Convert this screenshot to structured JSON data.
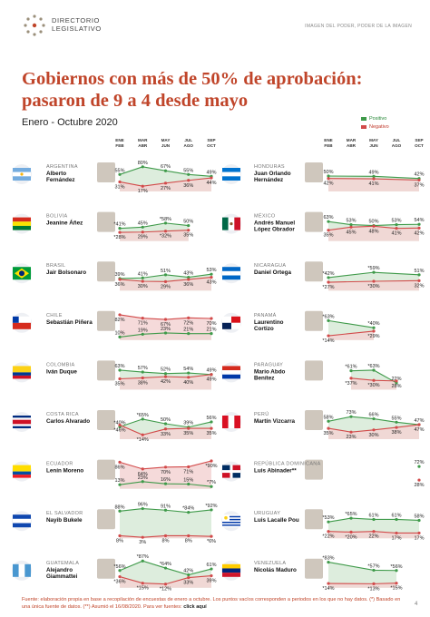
{
  "header": {
    "logo_line1": "DIRECTORIO",
    "logo_line2": "LEGISLATIVO",
    "tagline": "IMAGEN DEL PODER, PODER DE LA IMAGEN"
  },
  "title_line1": "Gobiernos con más de 50% de aprobación:",
  "title_line2": "pasaron de 9 a 4 desde mayo",
  "subtitle": "Enero - Octubre 2020",
  "legend": {
    "positive": "Positivo",
    "negative": "Negativo"
  },
  "colors": {
    "positive": "#3f9a4a",
    "negative": "#d24a4a",
    "pos_fill": "#d7ead7",
    "neg_fill": "#f3d3d3",
    "title": "#c0452a"
  },
  "months": [
    "ENE FEB",
    "MAR ABR",
    "MAY JUN",
    "JUL AGO",
    "SEP OCT"
  ],
  "chart_data": [
    {
      "type": "line",
      "country": "ARGENTINA",
      "leader": "Alberto Fernández",
      "flag": "argentina",
      "positive": [
        55,
        80,
        67,
        55,
        49
      ],
      "negative": [
        31,
        17,
        27,
        36,
        44
      ],
      "pos_labels": [
        "55%",
        "80%",
        "67%",
        "55%",
        "49%"
      ],
      "neg_labels": [
        "31%",
        "17%",
        "27%",
        "36%",
        "44%"
      ]
    },
    {
      "type": "line",
      "country": "BOLIVIA",
      "leader": "Jeanine Áñez",
      "flag": "bolivia",
      "positive": [
        41,
        45,
        58,
        50,
        null
      ],
      "negative": [
        28,
        29,
        32,
        35,
        null
      ],
      "pos_labels": [
        "*41%",
        "45%",
        "*58%",
        "50%",
        ""
      ],
      "neg_labels": [
        "*28%",
        "29%",
        "*32%",
        "35%",
        ""
      ]
    },
    {
      "type": "line",
      "country": "BRASIL",
      "leader": "Jair Bolsonaro",
      "flag": "brasil",
      "positive": [
        39,
        41,
        51,
        43,
        53
      ],
      "negative": [
        36,
        30,
        29,
        36,
        43
      ],
      "pos_labels": [
        "39%",
        "41%",
        "51%",
        "43%",
        "53%"
      ],
      "neg_labels": [
        "36%",
        "30%",
        "29%",
        "36%",
        "43%"
      ]
    },
    {
      "type": "line",
      "country": "CHILE",
      "leader": "Sebastián Piñera",
      "flag": "chile",
      "positive": [
        10,
        19,
        23,
        21,
        21
      ],
      "negative": [
        82,
        71,
        67,
        72,
        70
      ],
      "pos_labels": [
        "10%",
        "19%",
        "23%",
        "21%",
        "21%"
      ],
      "neg_labels": [
        "82%",
        "71%",
        "67%",
        "72%",
        "70%"
      ]
    },
    {
      "type": "line",
      "country": "COLOMBIA",
      "leader": "Iván Duque",
      "flag": "colombia",
      "positive": [
        63,
        57,
        52,
        54,
        49
      ],
      "negative": [
        35,
        38,
        42,
        40,
        49
      ],
      "pos_labels": [
        "63%",
        "57%",
        "52%",
        "54%",
        "49%"
      ],
      "neg_labels": [
        "35%",
        "38%",
        "42%",
        "40%",
        "49%"
      ]
    },
    {
      "type": "line",
      "country": "COSTA RICA",
      "leader": "Carlos Alvarado",
      "flag": "costa-rica",
      "positive": [
        40,
        65,
        50,
        39,
        56
      ],
      "negative": [
        46,
        14,
        33,
        35,
        35
      ],
      "pos_labels": [
        "*40%",
        "*65%",
        "50%",
        "39%",
        "56%"
      ],
      "neg_labels": [
        "*46%",
        "*14%",
        "33%",
        "35%",
        "35%"
      ]
    },
    {
      "type": "line",
      "country": "ECUADOR",
      "leader": "Lenín Moreno",
      "flag": "ecuador",
      "positive": [
        13,
        23,
        16,
        15,
        7
      ],
      "negative": [
        86,
        64,
        70,
        71,
        90
      ],
      "pos_labels": [
        "13%",
        "23%",
        "16%",
        "15%",
        "*7%"
      ],
      "neg_labels": [
        "86%",
        "64%",
        "70%",
        "71%",
        "*90%"
      ]
    },
    {
      "type": "line",
      "country": "EL SALVADOR",
      "leader": "Nayib Bukele",
      "flag": "el-salvador",
      "positive": [
        88,
        96,
        91,
        84,
        92
      ],
      "negative": [
        8,
        3,
        8,
        8,
        6
      ],
      "pos_labels": [
        "88%",
        "96%",
        "91%",
        "*84%",
        "*92%"
      ],
      "neg_labels": [
        "8%",
        "3%",
        "8%",
        "8%",
        "*6%"
      ]
    },
    {
      "type": "line",
      "country": "GUATEMALA",
      "leader": "Alejandro Giammattei",
      "flag": "guatemala",
      "positive": [
        56,
        87,
        64,
        42,
        61
      ],
      "negative": [
        36,
        15,
        12,
        33,
        39
      ],
      "pos_labels": [
        "*56%",
        "*87%",
        "*64%",
        "42%",
        "61%"
      ],
      "neg_labels": [
        "*36%",
        "*15%",
        "*12%",
        "33%",
        "39%"
      ]
    },
    {
      "type": "line",
      "country": "HONDURAS",
      "leader": "Juan Orlando Hernández",
      "flag": "honduras",
      "positive": [
        50,
        null,
        49,
        null,
        42
      ],
      "negative": [
        42,
        null,
        41,
        null,
        37
      ],
      "pos_labels": [
        "50%",
        "",
        "49%",
        "",
        "42%"
      ],
      "neg_labels": [
        "42%",
        "",
        "41%",
        "",
        "37%"
      ]
    },
    {
      "type": "line",
      "country": "MÉXICO",
      "leader": "Andrés Manuel López Obrador",
      "flag": "mexico",
      "positive": [
        63,
        53,
        50,
        53,
        54
      ],
      "negative": [
        35,
        45,
        48,
        41,
        42
      ],
      "pos_labels": [
        "63%",
        "53%",
        "50%",
        "53%",
        "54%"
      ],
      "neg_labels": [
        "35%",
        "45%",
        "48%",
        "41%",
        "42%"
      ]
    },
    {
      "type": "line",
      "country": "NICARAGUA",
      "leader": "Daniel Ortega",
      "flag": "nicaragua",
      "positive": [
        42,
        null,
        59,
        null,
        51
      ],
      "negative": [
        27,
        null,
        30,
        null,
        32
      ],
      "pos_labels": [
        "*42%",
        "",
        "*59%",
        "",
        "51%"
      ],
      "neg_labels": [
        "*27%",
        "",
        "*30%",
        "",
        "32%"
      ]
    },
    {
      "type": "line",
      "country": "PANAMÁ",
      "leader": "Laurentino Cortizo",
      "flag": "panama",
      "positive": [
        63,
        null,
        40,
        null,
        null
      ],
      "negative": [
        14,
        null,
        29,
        null,
        null
      ],
      "pos_labels": [
        "*63%",
        "",
        "*40%",
        "",
        ""
      ],
      "neg_labels": [
        "*14%",
        "",
        "*29%",
        "",
        ""
      ]
    },
    {
      "type": "line",
      "country": "PARAGUAY",
      "leader": "Mario Abdo Benítez",
      "flag": "paraguay",
      "positive": [
        null,
        61,
        63,
        22,
        null
      ],
      "negative": [
        null,
        37,
        30,
        28,
        null
      ],
      "pos_labels": [
        "",
        "*61%",
        "*63%",
        "22%",
        ""
      ],
      "neg_labels": [
        "",
        "*37%",
        "*30%",
        "28%",
        ""
      ]
    },
    {
      "type": "line",
      "country": "PERÚ",
      "leader": "Martín Vizcarra",
      "flag": "peru",
      "positive": [
        58,
        73,
        66,
        55,
        47
      ],
      "negative": [
        35,
        23,
        30,
        38,
        47
      ],
      "pos_labels": [
        "58%",
        "73%",
        "66%",
        "55%",
        "47%"
      ],
      "neg_labels": [
        "35%",
        "23%",
        "30%",
        "38%",
        "47%"
      ]
    },
    {
      "type": "line",
      "country": "REPÚBLICA DOMINICANA",
      "leader": "Luis Abinader**",
      "flag": "rep-dominicana",
      "positive": [
        null,
        null,
        null,
        null,
        72
      ],
      "negative": [
        null,
        null,
        null,
        null,
        28
      ],
      "pos_labels": [
        "",
        "",
        "",
        "",
        "72%"
      ],
      "neg_labels": [
        "",
        "",
        "",
        "",
        "28%"
      ]
    },
    {
      "type": "line",
      "country": "URUGUAY",
      "leader": "Luis Lacalle Pou",
      "flag": "uruguay",
      "positive": [
        53,
        65,
        61,
        61,
        58
      ],
      "negative": [
        22,
        20,
        22,
        17,
        17
      ],
      "pos_labels": [
        "*53%",
        "*65%",
        "61%",
        "61%",
        "58%"
      ],
      "neg_labels": [
        "*22%",
        "*20%",
        "22%",
        "17%",
        "17%"
      ]
    },
    {
      "type": "line",
      "country": "VENEZUELA",
      "leader": "Nicolás Maduro",
      "flag": "venezuela",
      "positive": [
        83,
        null,
        57,
        56,
        null
      ],
      "negative": [
        14,
        null,
        13,
        15,
        null
      ],
      "pos_labels": [
        "*83%",
        "",
        "*57%",
        "*56%",
        ""
      ],
      "neg_labels": [
        "*14%",
        "",
        "*13%",
        "*15%",
        ""
      ]
    }
  ],
  "footer": {
    "text": "Fuente: elaboración propia en base a recopilación de encuestas de enero a octubre. Los puntos vacíos corresponden a periodos en los que no hay datos. (*) Basado en una única fuente de datos. (**) Asumió el 16/08/2020. Para ver fuentes:",
    "link": "click aquí",
    "page": "4"
  }
}
